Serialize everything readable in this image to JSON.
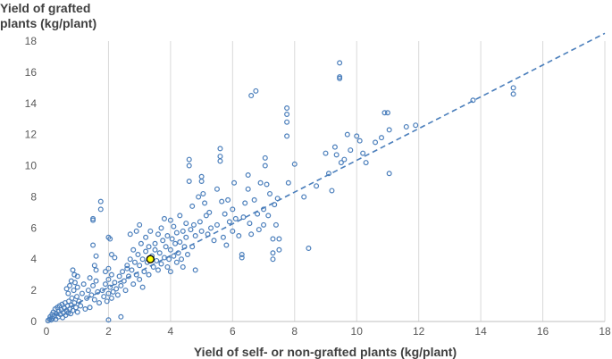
{
  "chart_data": {
    "type": "scatter",
    "title": "",
    "ylabel_lines": [
      "Yield of grafted",
      "plants (kg/plant)"
    ],
    "xlabel": "Yield of self- or non-grafted plants (kg/plant)",
    "xlim": [
      0,
      18
    ],
    "ylim": [
      0,
      18
    ],
    "xticks": [
      0,
      2,
      4,
      6,
      8,
      10,
      12,
      14,
      16,
      18
    ],
    "yticks": [
      0,
      2,
      4,
      6,
      8,
      10,
      12,
      14,
      16,
      18
    ],
    "grid": "vertical",
    "colors": {
      "marker": "#4a7ebb",
      "trend": "#4a7ebb",
      "highlight_fill": "#ffff00",
      "highlight_stroke": "#000000",
      "grid": "#d9d9d9",
      "axis": "#bfbfbf"
    },
    "trendline": {
      "style": "dashed",
      "from": [
        0,
        0.15
      ],
      "to": [
        18,
        18.5
      ]
    },
    "highlight": {
      "x": 3.35,
      "y": 4.0
    },
    "points": [
      [
        0.05,
        0.05
      ],
      [
        0.1,
        0.15
      ],
      [
        0.12,
        0.3
      ],
      [
        0.15,
        0.1
      ],
      [
        0.18,
        0.45
      ],
      [
        0.2,
        0.2
      ],
      [
        0.22,
        0.6
      ],
      [
        0.25,
        0.35
      ],
      [
        0.28,
        0.8
      ],
      [
        0.3,
        0.15
      ],
      [
        0.32,
        0.5
      ],
      [
        0.35,
        0.9
      ],
      [
        0.38,
        0.3
      ],
      [
        0.4,
        0.65
      ],
      [
        0.42,
        1.0
      ],
      [
        0.45,
        0.45
      ],
      [
        0.48,
        0.75
      ],
      [
        0.5,
        1.1
      ],
      [
        0.52,
        0.25
      ],
      [
        0.55,
        0.55
      ],
      [
        0.58,
        0.85
      ],
      [
        0.6,
        1.2
      ],
      [
        0.62,
        0.4
      ],
      [
        0.65,
        0.7
      ],
      [
        0.68,
        1.0
      ],
      [
        0.7,
        0.55
      ],
      [
        0.72,
        1.3
      ],
      [
        0.75,
        0.8
      ],
      [
        0.78,
        0.5
      ],
      [
        0.8,
        1.05
      ],
      [
        0.82,
        1.5
      ],
      [
        0.85,
        0.7
      ],
      [
        0.88,
        2.0
      ],
      [
        0.9,
        1.2
      ],
      [
        0.92,
        2.5
      ],
      [
        0.95,
        0.9
      ],
      [
        0.98,
        1.6
      ],
      [
        1.0,
        2.2
      ],
      [
        1.0,
        0.6
      ],
      [
        1.05,
        1.3
      ],
      [
        0.8,
        2.6
      ],
      [
        0.85,
        3.3
      ],
      [
        0.9,
        3.0
      ],
      [
        1.0,
        2.9
      ],
      [
        0.75,
        2.3
      ],
      [
        0.7,
        1.8
      ],
      [
        0.65,
        2.1
      ],
      [
        1.1,
        1.0
      ],
      [
        1.15,
        1.8
      ],
      [
        1.2,
        2.4
      ],
      [
        1.25,
        0.8
      ],
      [
        1.3,
        1.5
      ],
      [
        1.35,
        2.0
      ],
      [
        1.4,
        2.8
      ],
      [
        1.4,
        0.9
      ],
      [
        1.45,
        1.7
      ],
      [
        1.5,
        2.3
      ],
      [
        1.5,
        6.6
      ],
      [
        1.5,
        6.5
      ],
      [
        1.55,
        1.4
      ],
      [
        1.5,
        4.9
      ],
      [
        1.6,
        4.2
      ],
      [
        1.55,
        3.6
      ],
      [
        1.6,
        3.3
      ],
      [
        1.6,
        2.6
      ],
      [
        1.65,
        1.9
      ],
      [
        1.7,
        1.2
      ],
      [
        1.75,
        7.7
      ],
      [
        1.75,
        7.2
      ],
      [
        1.8,
        2.0
      ],
      [
        1.85,
        1.6
      ],
      [
        1.9,
        2.4
      ],
      [
        1.95,
        1.3
      ],
      [
        2.0,
        1.8
      ],
      [
        2.0,
        2.7
      ],
      [
        2.05,
        2.2
      ],
      [
        2.1,
        1.5
      ],
      [
        2.1,
        3.0
      ],
      [
        2.15,
        1.9
      ],
      [
        2.2,
        2.5
      ],
      [
        2.0,
        5.4
      ],
      [
        2.05,
        5.3
      ],
      [
        2.1,
        4.3
      ],
      [
        2.2,
        4.1
      ],
      [
        2.0,
        3.4
      ],
      [
        1.9,
        3.2
      ],
      [
        2.25,
        2.1
      ],
      [
        2.3,
        1.7
      ],
      [
        2.35,
        2.9
      ],
      [
        2.4,
        2.3
      ],
      [
        2.4,
        0.3
      ],
      [
        2.0,
        0.1
      ],
      [
        2.45,
        3.2
      ],
      [
        2.5,
        2.6
      ],
      [
        2.55,
        2.0
      ],
      [
        2.6,
        3.4
      ],
      [
        2.6,
        3.6
      ],
      [
        2.65,
        2.9
      ],
      [
        2.7,
        4.0
      ],
      [
        2.7,
        5.6
      ],
      [
        2.75,
        3.3
      ],
      [
        2.8,
        2.4
      ],
      [
        2.8,
        4.6
      ],
      [
        2.85,
        3.8
      ],
      [
        2.9,
        5.8
      ],
      [
        2.9,
        3.0
      ],
      [
        2.95,
        4.3
      ],
      [
        3.0,
        3.6
      ],
      [
        3.0,
        2.7
      ],
      [
        3.0,
        6.2
      ],
      [
        3.05,
        5.0
      ],
      [
        3.1,
        4.0
      ],
      [
        3.1,
        2.2
      ],
      [
        3.15,
        3.2
      ],
      [
        3.2,
        5.4
      ],
      [
        3.2,
        4.5
      ],
      [
        3.25,
        3.8
      ],
      [
        3.3,
        4.8
      ],
      [
        3.3,
        3.0
      ],
      [
        3.35,
        5.8
      ],
      [
        3.4,
        4.2
      ],
      [
        3.45,
        3.5
      ],
      [
        3.5,
        5.0
      ],
      [
        3.5,
        4.6
      ],
      [
        3.55,
        3.9
      ],
      [
        3.6,
        5.6
      ],
      [
        3.6,
        3.3
      ],
      [
        3.65,
        4.4
      ],
      [
        3.7,
        6.0
      ],
      [
        3.7,
        3.7
      ],
      [
        3.75,
        5.2
      ],
      [
        3.8,
        4.1
      ],
      [
        3.8,
        6.6
      ],
      [
        3.85,
        4.8
      ],
      [
        3.9,
        3.5
      ],
      [
        3.9,
        5.5
      ],
      [
        3.95,
        4.0
      ],
      [
        4.0,
        6.5
      ],
      [
        4.0,
        4.6
      ],
      [
        4.0,
        3.2
      ],
      [
        4.05,
        5.3
      ],
      [
        4.1,
        4.2
      ],
      [
        4.1,
        6.1
      ],
      [
        4.15,
        5.0
      ],
      [
        4.2,
        3.8
      ],
      [
        4.2,
        5.7
      ],
      [
        4.25,
        4.4
      ],
      [
        4.3,
        6.8
      ],
      [
        4.3,
        5.1
      ],
      [
        4.35,
        4.0
      ],
      [
        4.4,
        5.8
      ],
      [
        4.4,
        3.5
      ],
      [
        4.45,
        4.8
      ],
      [
        4.5,
        6.3
      ],
      [
        4.5,
        5.4
      ],
      [
        4.55,
        4.3
      ],
      [
        4.6,
        10.4
      ],
      [
        4.6,
        10.0
      ],
      [
        4.6,
        9.0
      ],
      [
        4.65,
        5.9
      ],
      [
        4.7,
        4.8
      ],
      [
        4.7,
        7.4
      ],
      [
        4.75,
        6.2
      ],
      [
        4.8,
        3.3
      ],
      [
        4.8,
        5.5
      ],
      [
        4.9,
        8.0
      ],
      [
        4.95,
        6.4
      ],
      [
        5.0,
        9.3
      ],
      [
        5.0,
        9.0
      ],
      [
        5.0,
        5.8
      ],
      [
        5.05,
        8.2
      ],
      [
        5.1,
        7.6
      ],
      [
        5.15,
        6.8
      ],
      [
        5.2,
        5.6
      ],
      [
        5.25,
        7.0
      ],
      [
        5.3,
        6.0
      ],
      [
        5.4,
        5.2
      ],
      [
        5.5,
        8.5
      ],
      [
        5.5,
        6.2
      ],
      [
        5.6,
        11.1
      ],
      [
        5.6,
        10.6
      ],
      [
        5.6,
        10.3
      ],
      [
        5.65,
        7.7
      ],
      [
        5.7,
        5.4
      ],
      [
        5.75,
        6.9
      ],
      [
        5.8,
        4.9
      ],
      [
        5.85,
        7.8
      ],
      [
        5.9,
        6.4
      ],
      [
        6.0,
        5.8
      ],
      [
        6.0,
        7.2
      ],
      [
        6.05,
        8.9
      ],
      [
        6.1,
        6.6
      ],
      [
        6.2,
        5.5
      ],
      [
        6.3,
        4.3
      ],
      [
        6.3,
        4.1
      ],
      [
        6.35,
        6.7
      ],
      [
        6.4,
        7.6
      ],
      [
        6.5,
        9.4
      ],
      [
        6.5,
        8.5
      ],
      [
        6.55,
        6.3
      ],
      [
        6.6,
        14.5
      ],
      [
        6.6,
        5.6
      ],
      [
        6.7,
        7.8
      ],
      [
        6.75,
        14.8
      ],
      [
        6.8,
        6.9
      ],
      [
        6.85,
        5.9
      ],
      [
        6.9,
        8.9
      ],
      [
        7.0,
        7.2
      ],
      [
        7.0,
        6.2
      ],
      [
        7.05,
        10.0
      ],
      [
        7.05,
        10.5
      ],
      [
        7.1,
        8.8
      ],
      [
        7.15,
        6.8
      ],
      [
        7.2,
        8.2
      ],
      [
        7.3,
        5.3
      ],
      [
        7.3,
        4.4
      ],
      [
        7.3,
        4.0
      ],
      [
        7.35,
        7.5
      ],
      [
        7.4,
        6.2
      ],
      [
        7.45,
        7.9
      ],
      [
        7.5,
        5.3
      ],
      [
        7.5,
        4.6
      ],
      [
        7.75,
        13.7
      ],
      [
        7.75,
        13.3
      ],
      [
        7.75,
        12.8
      ],
      [
        7.75,
        11.9
      ],
      [
        7.8,
        8.9
      ],
      [
        8.0,
        10.1
      ],
      [
        8.3,
        8.0
      ],
      [
        8.45,
        4.7
      ],
      [
        8.7,
        8.7
      ],
      [
        9.0,
        10.8
      ],
      [
        9.1,
        9.5
      ],
      [
        9.2,
        8.4
      ],
      [
        9.3,
        11.2
      ],
      [
        9.35,
        10.7
      ],
      [
        9.45,
        16.6
      ],
      [
        9.45,
        15.7
      ],
      [
        9.45,
        15.6
      ],
      [
        9.5,
        10.2
      ],
      [
        9.6,
        10.4
      ],
      [
        9.7,
        12.0
      ],
      [
        9.8,
        11.0
      ],
      [
        10.0,
        11.9
      ],
      [
        10.1,
        11.6
      ],
      [
        10.2,
        10.8
      ],
      [
        10.3,
        10.2
      ],
      [
        10.6,
        11.5
      ],
      [
        10.8,
        11.8
      ],
      [
        10.9,
        13.4
      ],
      [
        11.0,
        13.4
      ],
      [
        11.05,
        12.3
      ],
      [
        11.05,
        9.5
      ],
      [
        11.6,
        12.5
      ],
      [
        11.9,
        12.6
      ],
      [
        13.75,
        14.2
      ],
      [
        15.05,
        15.0
      ],
      [
        15.05,
        14.6
      ]
    ]
  }
}
